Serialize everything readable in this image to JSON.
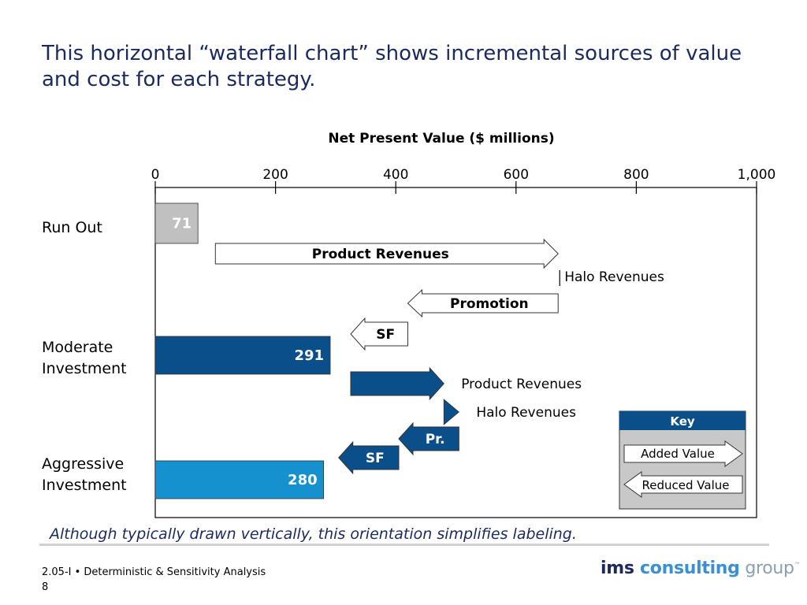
{
  "slide": {
    "title": "This horizontal “waterfall chart” shows incremental sources of value and cost for each strategy.",
    "caption": "Although typically drawn vertically, this orientation simplifies labeling.",
    "footer_line1": "2.05-I • Deterministic & Sensitivity Analysis",
    "page_number": "8",
    "logo": {
      "part1": "ims ",
      "part2": "consulting",
      "part3": " group",
      "tm": "™"
    }
  },
  "chart_data": {
    "type": "bar",
    "title": "Net Present Value ($ millions)",
    "xlabel": "Net Present Value ($ millions)",
    "xlim": [
      0,
      1000
    ],
    "ticks": [
      0,
      200,
      400,
      600,
      800,
      1000
    ],
    "tick_labels": [
      "0",
      "200",
      "400",
      "600",
      "800",
      "1,000"
    ],
    "categories": [
      "Run Out",
      "Moderate\nInvestment",
      "Aggressive\nInvestment"
    ],
    "totals": [
      {
        "category": "Run Out",
        "value": 71,
        "label": "71",
        "color": "#c0c0c0"
      },
      {
        "category": "Moderate Investment",
        "value": 291,
        "label": "291",
        "color": "#0a4f8a"
      },
      {
        "category": "Aggressive Investment",
        "value": 280,
        "label": "280",
        "color": "#1591d0"
      }
    ],
    "increments": [
      {
        "name": "Product Revenues",
        "label": "Product Revenues",
        "start": 100,
        "end": 670,
        "direction": "added",
        "color": "#ffffff",
        "label_pos": "inside"
      },
      {
        "name": "Halo Revenues",
        "label": "Halo Revenues",
        "start": 670,
        "end": 670,
        "direction": "added",
        "color": "#ffffff",
        "label_pos": "marker"
      },
      {
        "name": "Promotion",
        "label": "Promotion",
        "start": 670,
        "end": 420,
        "direction": "reduced",
        "color": "#ffffff",
        "label_pos": "inside"
      },
      {
        "name": "SF",
        "label": "SF",
        "start": 420,
        "end": 325,
        "direction": "reduced",
        "color": "#ffffff",
        "label_pos": "inside"
      },
      {
        "name": "Product Revenues",
        "label": "Product Revenues",
        "start": 325,
        "end": 480,
        "direction": "added",
        "color": "#0a4f8a",
        "label_pos": "right"
      },
      {
        "name": "Halo Revenues",
        "label": "Halo Revenues",
        "start": 480,
        "end": 505,
        "direction": "added",
        "color": "#0a4f8a",
        "label_pos": "right"
      },
      {
        "name": "Pr.",
        "label": "Pr.",
        "start": 505,
        "end": 405,
        "direction": "reduced",
        "color": "#0a4f8a",
        "label_pos": "inside"
      },
      {
        "name": "SF",
        "label": "SF",
        "start": 405,
        "end": 305,
        "direction": "reduced",
        "color": "#0a4f8a",
        "label_pos": "inside"
      }
    ],
    "key": {
      "title": "Key",
      "added_label": "Added Value",
      "reduced_label": "Reduced Value"
    },
    "grid": false
  }
}
